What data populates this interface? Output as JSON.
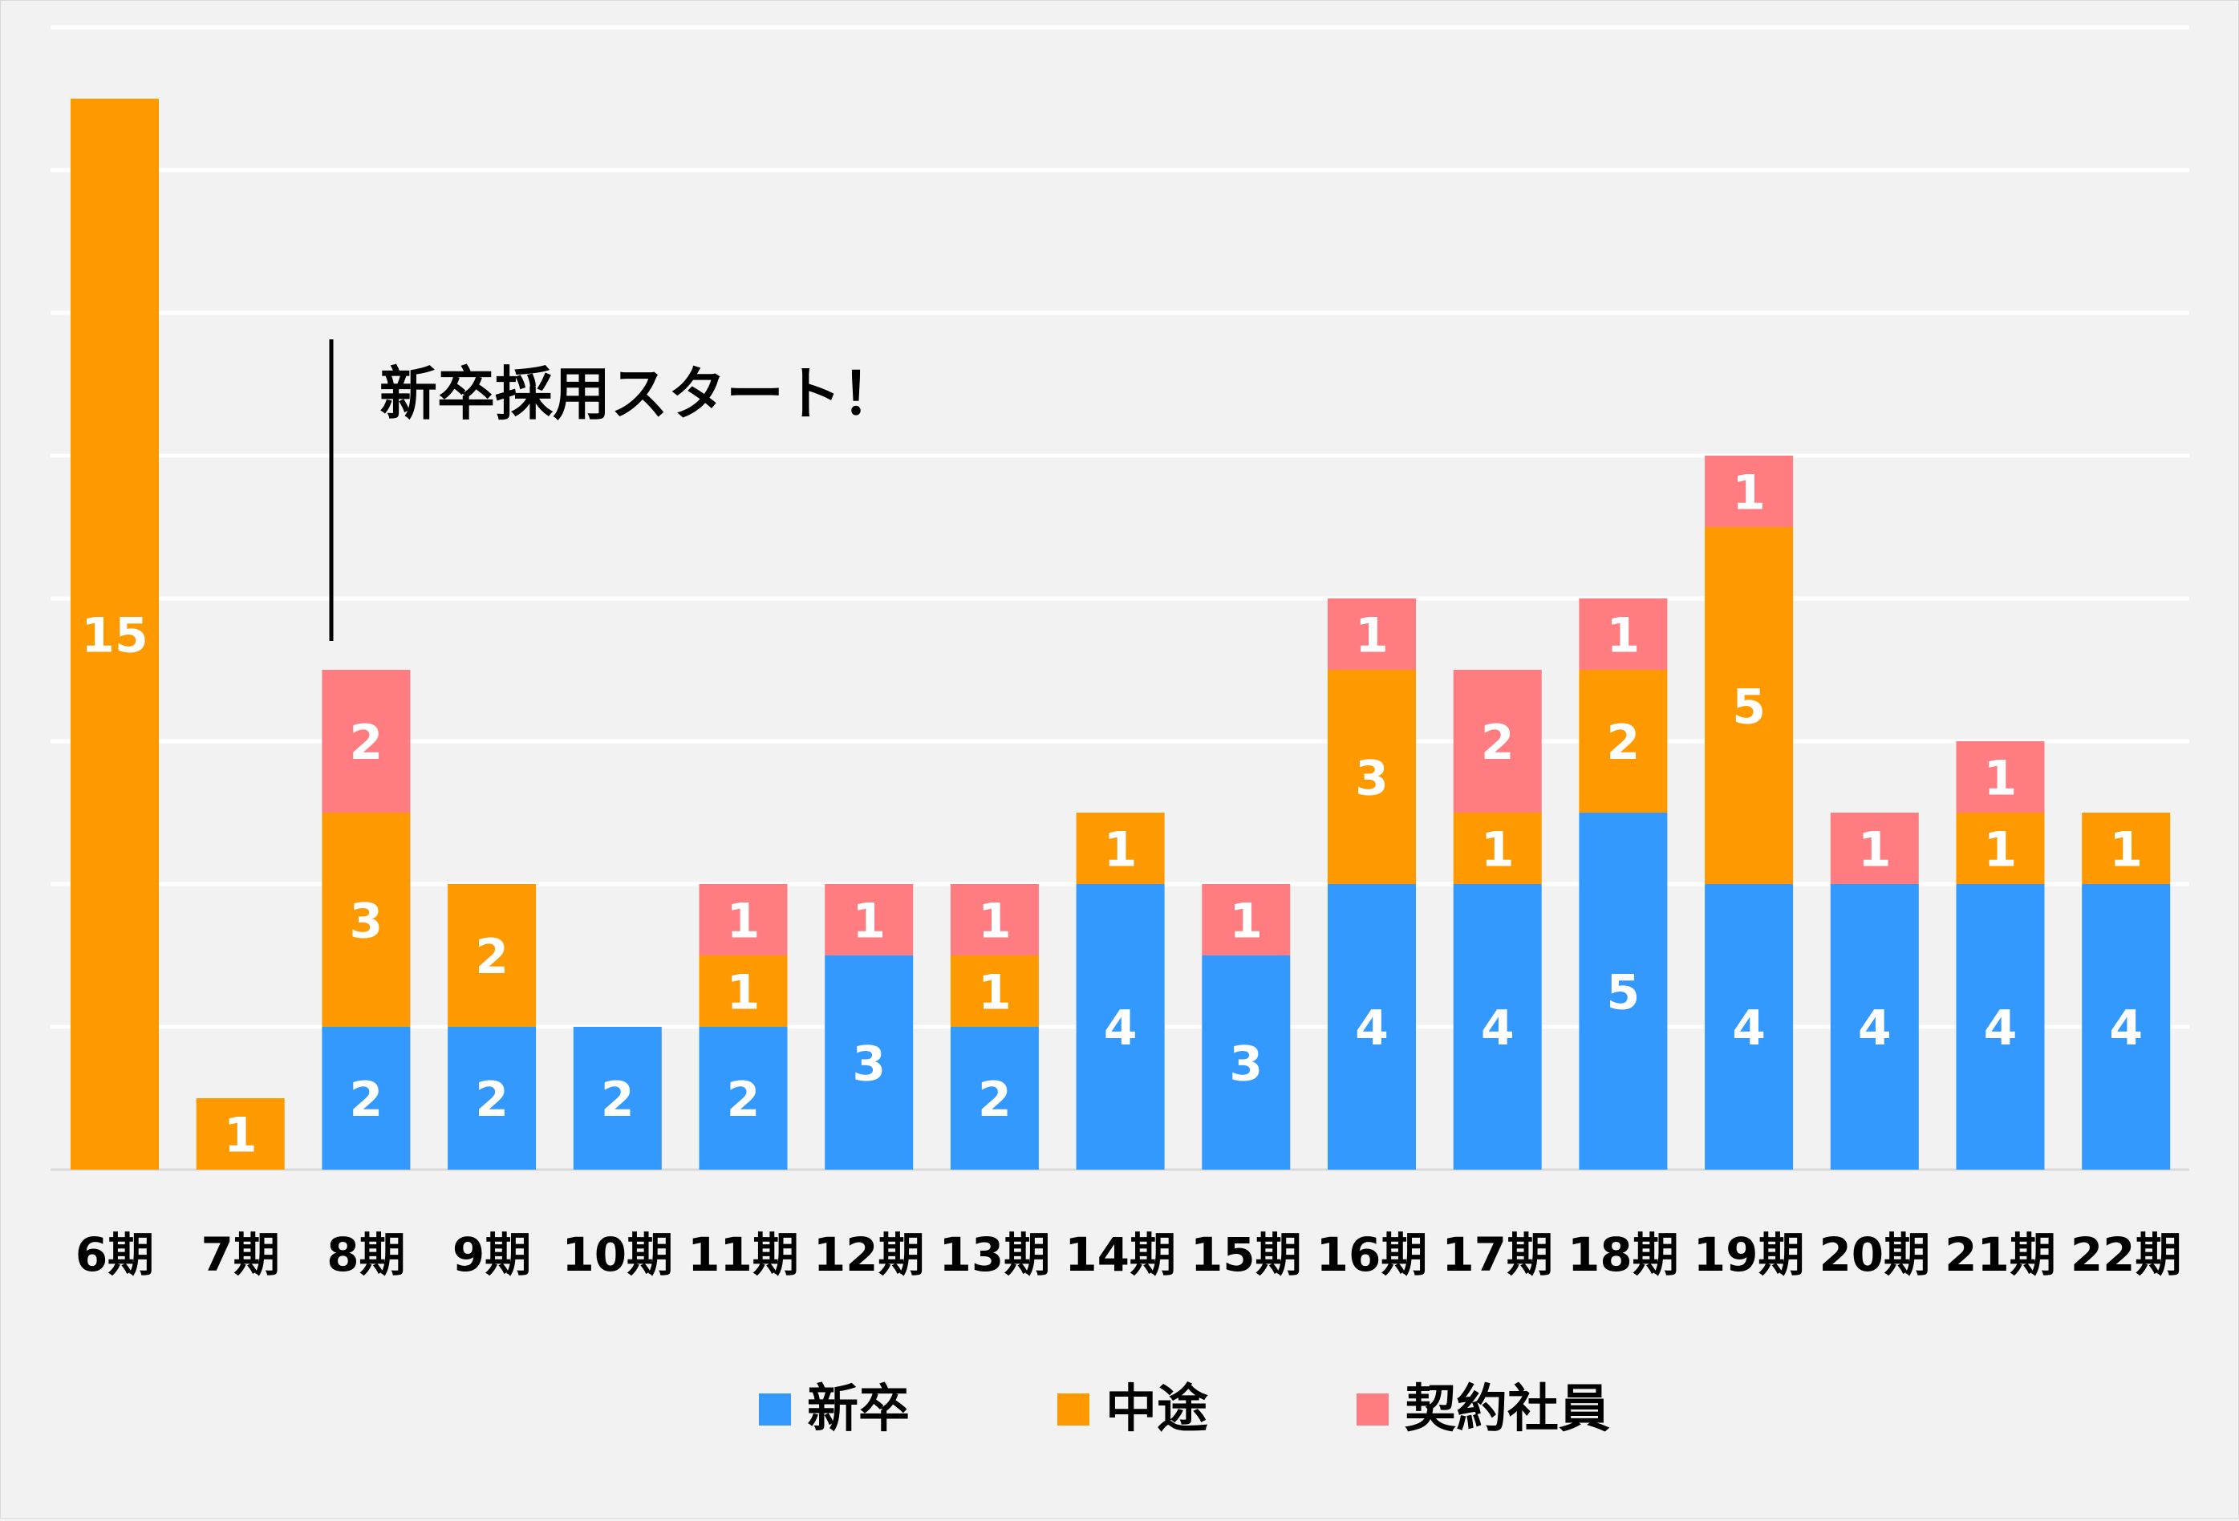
{
  "chart_data": {
    "type": "bar",
    "stacked": true,
    "categories": [
      "6期",
      "7期",
      "8期",
      "9期",
      "10期",
      "11期",
      "12期",
      "13期",
      "14期",
      "15期",
      "16期",
      "17期",
      "18期",
      "19期",
      "20期",
      "21期",
      "22期"
    ],
    "series": [
      {
        "name": "新卒",
        "color": "#3399ff",
        "values": [
          0,
          0,
          2,
          2,
          2,
          2,
          3,
          2,
          4,
          3,
          4,
          4,
          5,
          4,
          4,
          4,
          4
        ]
      },
      {
        "name": "中途",
        "color": "#ff9900",
        "values": [
          15,
          1,
          3,
          2,
          0,
          1,
          0,
          1,
          1,
          0,
          3,
          1,
          2,
          5,
          0,
          1,
          1
        ]
      },
      {
        "name": "契約社員",
        "color": "#ff7c80",
        "values": [
          0,
          0,
          2,
          0,
          0,
          1,
          1,
          1,
          0,
          1,
          1,
          2,
          1,
          1,
          1,
          1,
          0
        ]
      }
    ],
    "ylim": [
      0,
      16
    ],
    "gridlines": true,
    "data_labels": true,
    "legend_position": "bottom",
    "annotation": {
      "text": "新卒採用スタート！",
      "at_category": "8期"
    }
  }
}
